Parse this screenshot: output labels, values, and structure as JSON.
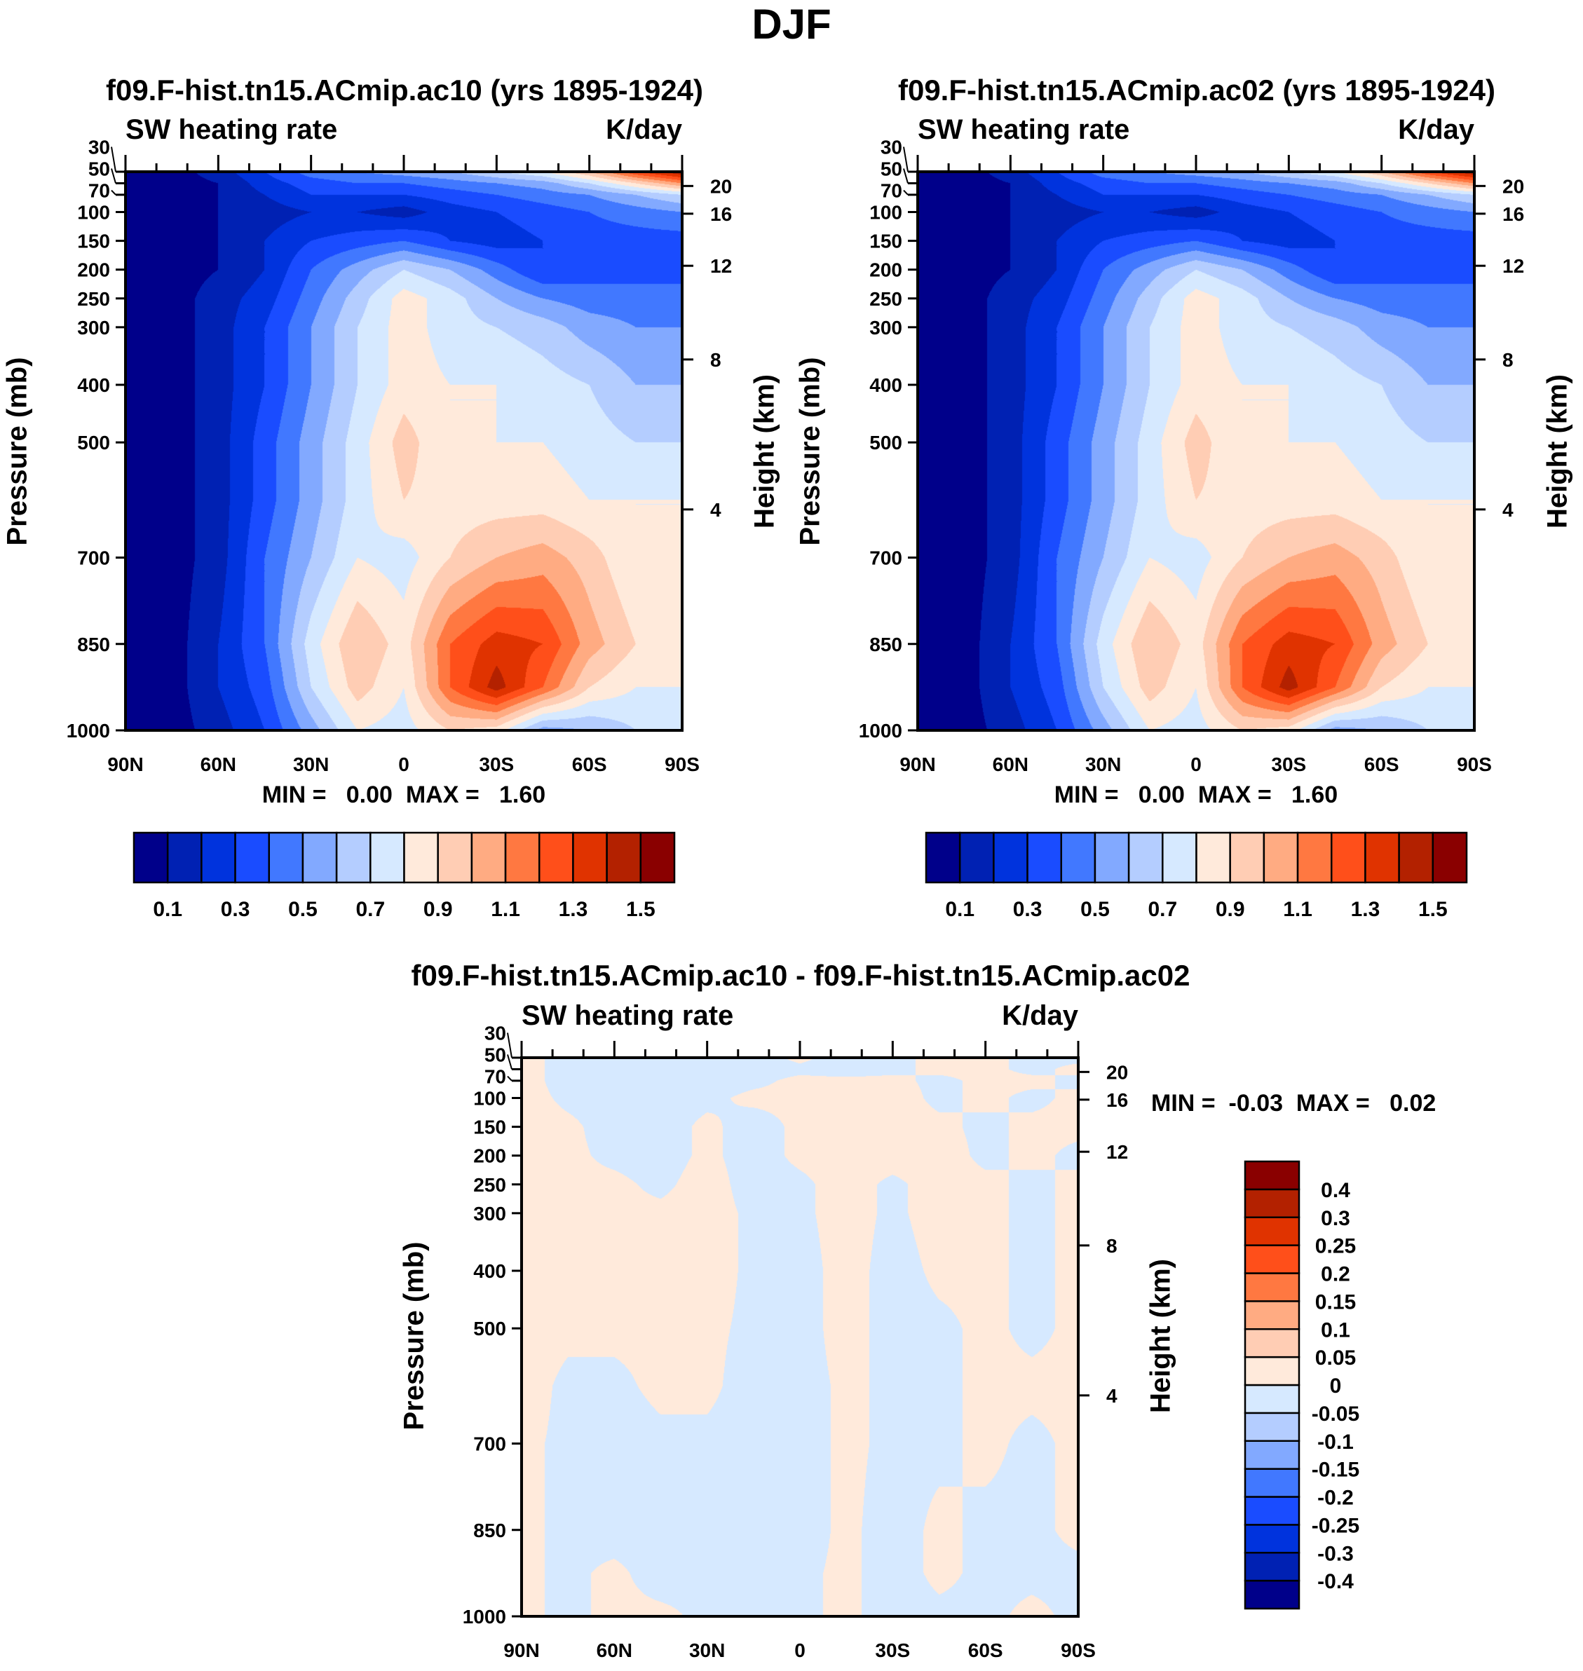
{
  "figure_title": "DJF",
  "chart_data": [
    {
      "type": "heatmap",
      "subtype": "filled-contour",
      "title": "f09.F-hist.tn15.ACmip.ac10 (yrs 1895-1924)",
      "left_string": "SW heating rate",
      "right_string": "K/day",
      "xlabel": "",
      "ylabel": "Pressure (mb)",
      "ylabel_right": "Height (km)",
      "xlim": [
        90,
        -90
      ],
      "ylim": [
        30,
        1000
      ],
      "x_ticks": [
        {
          "v": 90,
          "label": "90N"
        },
        {
          "v": 60,
          "label": "60N"
        },
        {
          "v": 30,
          "label": "30N"
        },
        {
          "v": 0,
          "label": "0"
        },
        {
          "v": -30,
          "label": "30S"
        },
        {
          "v": -60,
          "label": "60S"
        },
        {
          "v": -90,
          "label": "90S"
        }
      ],
      "y_ticks": [
        30,
        50,
        70,
        100,
        150,
        200,
        250,
        300,
        400,
        500,
        700,
        850,
        1000
      ],
      "height_ticks": [
        20,
        16,
        12,
        8,
        4
      ],
      "min_max": "MIN =   0.00  MAX =   1.60",
      "levels": [
        0.1,
        0.2,
        0.3,
        0.4,
        0.5,
        0.6,
        0.7,
        0.8,
        0.9,
        1.0,
        1.1,
        1.2,
        1.3,
        1.4,
        1.5
      ],
      "colorbar_labels": [
        "0.1",
        "0.3",
        "0.5",
        "0.7",
        "0.9",
        "1.1",
        "1.3",
        "1.5"
      ],
      "colors": [
        "#00008a",
        "#0021b3",
        "#0033dd",
        "#1a4cff",
        "#4178ff",
        "#82a9ff",
        "#b4cdff",
        "#d6e9ff",
        "#ffeadb",
        "#ffcdb4",
        "#ffab82",
        "#ff7841",
        "#ff4f1a",
        "#e03300",
        "#b32100",
        "#8a0000"
      ],
      "lat": [
        90,
        75,
        60,
        45,
        30,
        15,
        0,
        -15,
        -30,
        -45,
        -60,
        -75,
        -90
      ],
      "lev": [
        30,
        50,
        70,
        100,
        150,
        200,
        250,
        300,
        400,
        500,
        600,
        700,
        850,
        925,
        1000
      ],
      "values": [
        [
          0.05,
          0.05,
          0.15,
          0.3,
          0.45,
          0.5,
          0.55,
          0.6,
          0.7,
          0.8,
          1.0,
          1.3,
          1.5
        ],
        [
          0.05,
          0.05,
          0.1,
          0.25,
          0.35,
          0.4,
          0.4,
          0.45,
          0.5,
          0.55,
          0.7,
          0.9,
          1.1
        ],
        [
          0.05,
          0.05,
          0.1,
          0.2,
          0.3,
          0.3,
          0.3,
          0.35,
          0.4,
          0.45,
          0.5,
          0.6,
          0.7
        ],
        [
          0.05,
          0.05,
          0.1,
          0.15,
          0.2,
          0.2,
          0.15,
          0.25,
          0.3,
          0.35,
          0.4,
          0.45,
          0.5
        ],
        [
          0.05,
          0.05,
          0.1,
          0.2,
          0.3,
          0.35,
          0.4,
          0.3,
          0.25,
          0.3,
          0.35,
          0.35,
          0.35
        ],
        [
          0.05,
          0.05,
          0.1,
          0.2,
          0.4,
          0.55,
          0.7,
          0.6,
          0.45,
          0.3,
          0.35,
          0.35,
          0.35
        ],
        [
          0.05,
          0.05,
          0.15,
          0.25,
          0.45,
          0.65,
          0.85,
          0.75,
          0.6,
          0.5,
          0.45,
          0.45,
          0.45
        ],
        [
          0.05,
          0.05,
          0.15,
          0.3,
          0.5,
          0.7,
          0.85,
          0.75,
          0.7,
          0.65,
          0.55,
          0.5,
          0.5
        ],
        [
          0.05,
          0.05,
          0.15,
          0.3,
          0.5,
          0.7,
          0.85,
          0.8,
          0.8,
          0.75,
          0.7,
          0.6,
          0.6
        ],
        [
          0.05,
          0.05,
          0.15,
          0.35,
          0.55,
          0.75,
          0.95,
          0.8,
          0.8,
          0.8,
          0.75,
          0.7,
          0.7
        ],
        [
          0.05,
          0.05,
          0.15,
          0.35,
          0.55,
          0.75,
          0.9,
          0.85,
          0.85,
          0.85,
          0.8,
          0.8,
          0.8
        ],
        [
          0.05,
          0.05,
          0.15,
          0.4,
          0.6,
          0.8,
          0.75,
          0.9,
          1.0,
          1.05,
          0.95,
          0.8,
          0.8
        ],
        [
          0.05,
          0.05,
          0.2,
          0.4,
          0.75,
          1.0,
          0.85,
          1.2,
          1.35,
          1.3,
          1.05,
          0.9,
          0.8
        ],
        [
          0.05,
          0.05,
          0.2,
          0.35,
          0.7,
          0.95,
          0.8,
          1.2,
          1.45,
          1.2,
          0.9,
          0.8,
          0.8
        ],
        [
          0.05,
          0.05,
          0.15,
          0.3,
          0.55,
          0.8,
          0.75,
          0.9,
          0.85,
          0.55,
          0.6,
          0.7,
          0.7
        ]
      ]
    },
    {
      "type": "heatmap",
      "subtype": "filled-contour",
      "title": "f09.F-hist.tn15.ACmip.ac02 (yrs 1895-1924)",
      "left_string": "SW heating rate",
      "right_string": "K/day",
      "xlabel": "",
      "ylabel": "Pressure (mb)",
      "ylabel_right": "Height (km)",
      "xlim": [
        90,
        -90
      ],
      "ylim": [
        30,
        1000
      ],
      "x_ticks": [
        {
          "v": 90,
          "label": "90N"
        },
        {
          "v": 60,
          "label": "60N"
        },
        {
          "v": 30,
          "label": "30N"
        },
        {
          "v": 0,
          "label": "0"
        },
        {
          "v": -30,
          "label": "30S"
        },
        {
          "v": -60,
          "label": "60S"
        },
        {
          "v": -90,
          "label": "90S"
        }
      ],
      "y_ticks": [
        30,
        50,
        70,
        100,
        150,
        200,
        250,
        300,
        400,
        500,
        700,
        850,
        1000
      ],
      "height_ticks": [
        20,
        16,
        12,
        8,
        4
      ],
      "min_max": "MIN =   0.00  MAX =   1.60",
      "levels": [
        0.1,
        0.2,
        0.3,
        0.4,
        0.5,
        0.6,
        0.7,
        0.8,
        0.9,
        1.0,
        1.1,
        1.2,
        1.3,
        1.4,
        1.5
      ],
      "colorbar_labels": [
        "0.1",
        "0.3",
        "0.5",
        "0.7",
        "0.9",
        "1.1",
        "1.3",
        "1.5"
      ],
      "colors": [
        "#00008a",
        "#0021b3",
        "#0033dd",
        "#1a4cff",
        "#4178ff",
        "#82a9ff",
        "#b4cdff",
        "#d6e9ff",
        "#ffeadb",
        "#ffcdb4",
        "#ffab82",
        "#ff7841",
        "#ff4f1a",
        "#e03300",
        "#b32100",
        "#8a0000"
      ],
      "lat": [
        90,
        75,
        60,
        45,
        30,
        15,
        0,
        -15,
        -30,
        -45,
        -60,
        -75,
        -90
      ],
      "lev": [
        30,
        50,
        70,
        100,
        150,
        200,
        250,
        300,
        400,
        500,
        600,
        700,
        850,
        925,
        1000
      ],
      "values": [
        [
          0.05,
          0.05,
          0.15,
          0.3,
          0.45,
          0.5,
          0.55,
          0.6,
          0.7,
          0.8,
          1.0,
          1.3,
          1.5
        ],
        [
          0.05,
          0.05,
          0.1,
          0.25,
          0.35,
          0.4,
          0.4,
          0.45,
          0.5,
          0.55,
          0.7,
          0.9,
          1.1
        ],
        [
          0.05,
          0.05,
          0.1,
          0.2,
          0.3,
          0.3,
          0.3,
          0.35,
          0.4,
          0.45,
          0.5,
          0.6,
          0.7
        ],
        [
          0.05,
          0.05,
          0.1,
          0.15,
          0.2,
          0.2,
          0.15,
          0.25,
          0.3,
          0.35,
          0.4,
          0.45,
          0.5
        ],
        [
          0.05,
          0.05,
          0.1,
          0.2,
          0.3,
          0.35,
          0.4,
          0.3,
          0.25,
          0.3,
          0.35,
          0.35,
          0.35
        ],
        [
          0.05,
          0.05,
          0.1,
          0.2,
          0.4,
          0.55,
          0.7,
          0.6,
          0.45,
          0.3,
          0.35,
          0.35,
          0.35
        ],
        [
          0.05,
          0.05,
          0.15,
          0.25,
          0.45,
          0.65,
          0.85,
          0.75,
          0.6,
          0.5,
          0.45,
          0.45,
          0.45
        ],
        [
          0.05,
          0.05,
          0.15,
          0.3,
          0.5,
          0.7,
          0.85,
          0.75,
          0.7,
          0.65,
          0.55,
          0.5,
          0.5
        ],
        [
          0.05,
          0.05,
          0.15,
          0.3,
          0.5,
          0.7,
          0.85,
          0.8,
          0.8,
          0.75,
          0.7,
          0.6,
          0.6
        ],
        [
          0.05,
          0.05,
          0.15,
          0.35,
          0.55,
          0.75,
          0.95,
          0.8,
          0.8,
          0.8,
          0.75,
          0.7,
          0.7
        ],
        [
          0.05,
          0.05,
          0.15,
          0.35,
          0.55,
          0.75,
          0.9,
          0.85,
          0.85,
          0.85,
          0.8,
          0.8,
          0.8
        ],
        [
          0.05,
          0.05,
          0.15,
          0.4,
          0.6,
          0.8,
          0.75,
          0.9,
          1.0,
          1.05,
          0.95,
          0.8,
          0.8
        ],
        [
          0.05,
          0.05,
          0.2,
          0.4,
          0.75,
          1.0,
          0.85,
          1.2,
          1.35,
          1.3,
          1.05,
          0.9,
          0.8
        ],
        [
          0.05,
          0.05,
          0.2,
          0.35,
          0.7,
          0.95,
          0.8,
          1.2,
          1.45,
          1.2,
          0.9,
          0.8,
          0.8
        ],
        [
          0.05,
          0.05,
          0.15,
          0.3,
          0.55,
          0.8,
          0.75,
          0.9,
          0.85,
          0.55,
          0.6,
          0.7,
          0.7
        ]
      ]
    },
    {
      "type": "heatmap",
      "subtype": "filled-contour",
      "title": "f09.F-hist.tn15.ACmip.ac10 - f09.F-hist.tn15.ACmip.ac02",
      "left_string": "SW heating rate",
      "right_string": "K/day",
      "xlabel": "",
      "ylabel": "Pressure (mb)",
      "ylabel_right": "Height (km)",
      "xlim": [
        90,
        -90
      ],
      "ylim": [
        30,
        1000
      ],
      "x_ticks": [
        {
          "v": 90,
          "label": "90N"
        },
        {
          "v": 60,
          "label": "60N"
        },
        {
          "v": 30,
          "label": "30N"
        },
        {
          "v": 0,
          "label": "0"
        },
        {
          "v": -30,
          "label": "30S"
        },
        {
          "v": -60,
          "label": "60S"
        },
        {
          "v": -90,
          "label": "90S"
        }
      ],
      "y_ticks": [
        30,
        50,
        70,
        100,
        150,
        200,
        250,
        300,
        400,
        500,
        700,
        850,
        1000
      ],
      "height_ticks": [
        20,
        16,
        12,
        8,
        4
      ],
      "min_max": "MIN =  -0.03  MAX =   0.02",
      "levels": [
        -0.4,
        -0.3,
        -0.25,
        -0.2,
        -0.15,
        -0.1,
        -0.05,
        0,
        0.05,
        0.1,
        0.15,
        0.2,
        0.25,
        0.3,
        0.4
      ],
      "colorbar_labels": [
        "-0.4",
        "-0.3",
        "-0.25",
        "-0.2",
        "-0.15",
        "-0.1",
        "-0.05",
        "0",
        "0.05",
        "0.1",
        "0.15",
        "0.2",
        "0.25",
        "0.3",
        "0.4"
      ],
      "colors": [
        "#00008a",
        "#0021b3",
        "#0033dd",
        "#1a4cff",
        "#4178ff",
        "#82a9ff",
        "#b4cdff",
        "#d6e9ff",
        "#ffeadb",
        "#ffcdb4",
        "#ffab82",
        "#ff7841",
        "#ff4f1a",
        "#e03300",
        "#b32100",
        "#8a0000"
      ],
      "lat": [
        90,
        75,
        60,
        45,
        30,
        15,
        0,
        -15,
        -30,
        -45,
        -60,
        -75,
        -90
      ],
      "lev": [
        30,
        50,
        70,
        100,
        150,
        200,
        250,
        300,
        400,
        500,
        600,
        700,
        850,
        925,
        1000
      ],
      "values": [
        [
          0.01,
          -0.01,
          -0.01,
          -0.01,
          -0.01,
          -0.01,
          0.005,
          -0.01,
          -0.005,
          0.005,
          0.005,
          -0.005,
          -0.005
        ],
        [
          0.01,
          -0.01,
          -0.01,
          -0.01,
          -0.01,
          -0.01,
          -0.005,
          -0.01,
          -0.005,
          0.005,
          0.005,
          -0.005,
          0.005
        ],
        [
          0.01,
          -0.01,
          -0.01,
          -0.01,
          -0.01,
          -0.005,
          0.005,
          0.005,
          0.005,
          -0.005,
          0.005,
          0.005,
          -0.005
        ],
        [
          0.01,
          -0.005,
          -0.01,
          -0.01,
          -0.005,
          0.005,
          0.005,
          0.005,
          0.01,
          -0.005,
          0.005,
          -0.005,
          0.005
        ],
        [
          0.01,
          0.005,
          -0.01,
          -0.01,
          0.005,
          -0.01,
          0.005,
          0.01,
          0.01,
          0.005,
          -0.005,
          0.005,
          0.005
        ],
        [
          0.01,
          0.005,
          -0.005,
          -0.01,
          0.005,
          -0.01,
          0.005,
          0.01,
          0.01,
          0.01,
          -0.005,
          0.005,
          -0.005
        ],
        [
          0.01,
          0.005,
          0.005,
          -0.005,
          0.01,
          -0.01,
          -0.005,
          0.01,
          -0.005,
          0.01,
          0.005,
          -0.005,
          0.005
        ],
        [
          0.01,
          0.01,
          0.005,
          0.005,
          0.01,
          -0.005,
          -0.005,
          0.01,
          -0.005,
          0.01,
          0.005,
          -0.005,
          0.005
        ],
        [
          0.01,
          0.01,
          0.005,
          0.005,
          0.01,
          -0.005,
          -0.01,
          0.01,
          -0.01,
          0.005,
          0.005,
          -0.005,
          0.005
        ],
        [
          0.01,
          0.005,
          0.005,
          0.005,
          0.005,
          -0.005,
          -0.01,
          0.01,
          -0.01,
          -0.005,
          0.005,
          -0.005,
          0.005
        ],
        [
          0.01,
          -0.005,
          -0.005,
          0.005,
          0.005,
          -0.01,
          -0.01,
          0.005,
          -0.005,
          -0.005,
          0.005,
          0.005,
          0.005
        ],
        [
          0.005,
          -0.005,
          -0.01,
          -0.005,
          -0.005,
          -0.01,
          -0.01,
          0.005,
          -0.005,
          -0.005,
          0.005,
          -0.005,
          0.005
        ],
        [
          0.005,
          -0.005,
          -0.01,
          -0.01,
          -0.005,
          -0.01,
          -0.01,
          0.005,
          -0.01,
          0.005,
          -0.005,
          -0.005,
          0.005
        ],
        [
          0.005,
          -0.005,
          0.005,
          -0.01,
          -0.005,
          -0.01,
          -0.005,
          0.005,
          -0.01,
          0.005,
          -0.005,
          -0.005,
          -0.005
        ],
        [
          0.005,
          -0.005,
          0.005,
          0.005,
          -0.005,
          -0.01,
          -0.005,
          0.005,
          -0.01,
          -0.005,
          -0.005,
          0.005,
          -0.005
        ]
      ]
    }
  ]
}
